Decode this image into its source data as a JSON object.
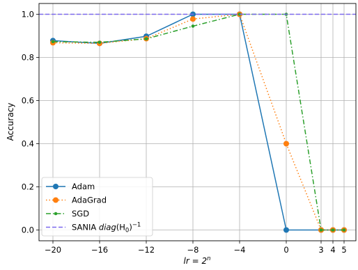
{
  "chart_data": {
    "type": "line",
    "xlabel": "lr = 2^n",
    "xlabel_parts": {
      "main": "lr = 2",
      "sup": "n"
    },
    "ylabel": "Accuracy",
    "x_ticks": [
      -20,
      -16,
      -12,
      -8,
      -4,
      0,
      3,
      4,
      5
    ],
    "y_ticks": [
      0.0,
      0.2,
      0.4,
      0.6,
      0.8,
      1.0
    ],
    "y_tick_labels": [
      "0.0",
      "0.2",
      "0.4",
      "0.6",
      "0.8",
      "1.0"
    ],
    "x_tick_labels": [
      "−20",
      "−16",
      "−12",
      "−8",
      "−4",
      "0",
      "3",
      "4",
      "5"
    ],
    "ylim": [
      -0.05,
      1.05
    ],
    "grid": true,
    "legend_position": "lower-left",
    "series": [
      {
        "name": "Adam",
        "color": "#1f77b4",
        "style": "solid",
        "marker": "circle",
        "x": [
          -20,
          -16,
          -12,
          -8,
          -4,
          0,
          3,
          4,
          5
        ],
        "values": [
          0.878,
          0.865,
          0.898,
          1.0,
          1.0,
          0.0,
          0.0,
          0.0,
          0.0
        ]
      },
      {
        "name": "AdaGrad",
        "color": "#ff7f0e",
        "style": "dotted",
        "marker": "circle",
        "x": [
          -20,
          -16,
          -12,
          -8,
          -4,
          0,
          3,
          4,
          5
        ],
        "values": [
          0.868,
          0.865,
          0.887,
          0.978,
          1.0,
          0.4,
          0.0,
          0.0,
          0.0
        ]
      },
      {
        "name": "SGD",
        "color": "#2ca02c",
        "style": "dashdot",
        "marker": "small-circle",
        "x": [
          -20,
          -16,
          -12,
          -8,
          -4,
          0,
          3,
          4,
          5
        ],
        "values": [
          0.873,
          0.87,
          0.886,
          0.945,
          1.0,
          1.0,
          0.0,
          0.0,
          0.0
        ]
      },
      {
        "name": "SANIA diag(H0)^-1",
        "legend_parts": {
          "prefix": "SANIA ",
          "italic": "diag",
          "mid": "(H",
          "sub": "0",
          "close": ")",
          "sup": "−1"
        },
        "color": "#7b68ee",
        "style": "dashed",
        "marker": "none",
        "type": "hline",
        "values": [
          1.0
        ]
      }
    ]
  }
}
